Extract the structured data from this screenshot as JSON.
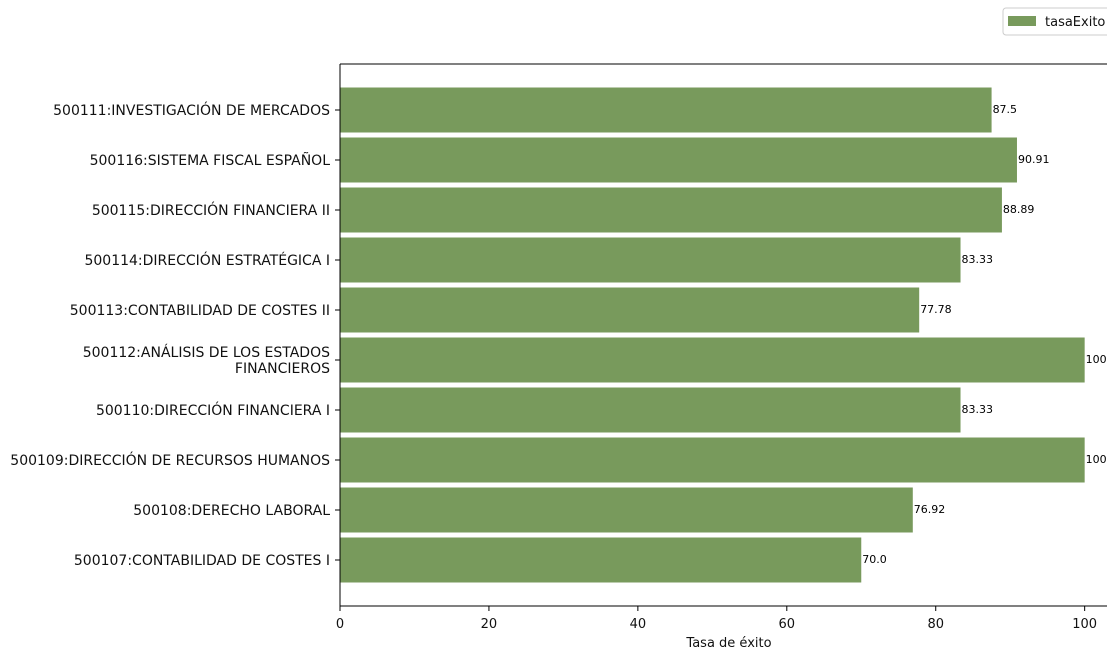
{
  "chart_data": {
    "type": "bar",
    "orientation": "horizontal",
    "categories": [
      "500111:INVESTIGACIÓN DE MERCADOS",
      "500116:SISTEMA FISCAL ESPAÑOL",
      "500115:DIRECCIÓN FINANCIERA II",
      "500114:DIRECCIÓN ESTRATÉGICA I",
      "500113:CONTABILIDAD DE COSTES II",
      "500112:ANÁLISIS DE LOS ESTADOS FINANCIEROS",
      "500110:DIRECCIÓN FINANCIERA I",
      "500109:DIRECCIÓN DE RECURSOS HUMANOS",
      "500108:DERECHO LABORAL",
      "500107:CONTABILIDAD DE COSTES I"
    ],
    "category_lines": [
      [
        "500111:INVESTIGACIÓN DE MERCADOS"
      ],
      [
        "500116:SISTEMA FISCAL ESPAÑOL"
      ],
      [
        "500115:DIRECCIÓN FINANCIERA II"
      ],
      [
        "500114:DIRECCIÓN ESTRATÉGICA I"
      ],
      [
        "500113:CONTABILIDAD DE COSTES II"
      ],
      [
        "500112:ANÁLISIS DE LOS ESTADOS",
        "FINANCIEROS"
      ],
      [
        "500110:DIRECCIÓN FINANCIERA I"
      ],
      [
        "500109:DIRECCIÓN DE RECURSOS HUMANOS"
      ],
      [
        "500108:DERECHO LABORAL"
      ],
      [
        "500107:CONTABILIDAD DE COSTES I"
      ]
    ],
    "series": [
      {
        "name": "tasaExito",
        "color": "#789a5c",
        "values": [
          87.5,
          90.91,
          88.89,
          83.33,
          77.78,
          100.0,
          83.33,
          100.0,
          76.92,
          70.0
        ],
        "value_labels": [
          "87.5",
          "90.91",
          "88.89",
          "83.33",
          "77.78",
          "100.0",
          "83.33",
          "100.0",
          "76.92",
          "70.0"
        ]
      }
    ],
    "xlabel": "Tasa de éxito",
    "ylabel": "",
    "xlim": [
      0,
      103
    ],
    "xticks": [
      0,
      20,
      40,
      60,
      80,
      100
    ],
    "grid": false,
    "legend": {
      "placement": "top-right",
      "entries": [
        "tasaExito"
      ]
    }
  }
}
